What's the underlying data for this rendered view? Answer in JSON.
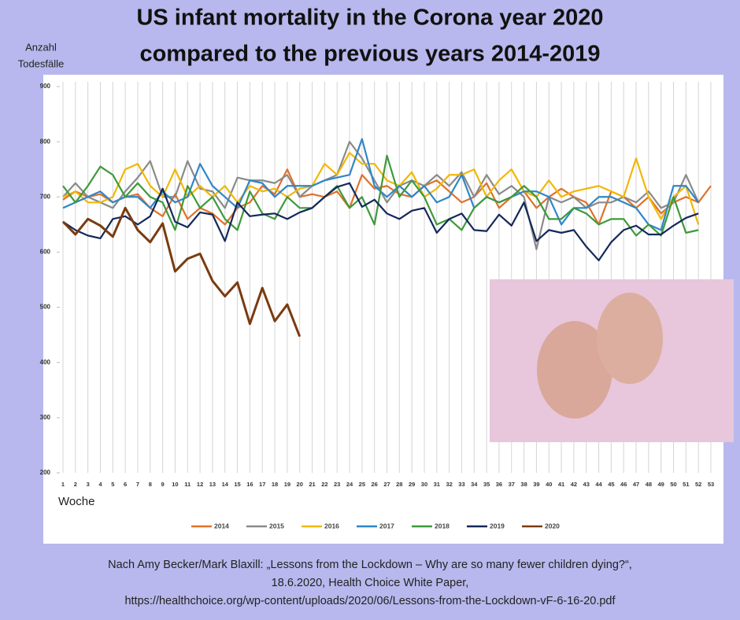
{
  "chart_data": {
    "type": "line",
    "title": [
      "US infant mortality in the Corona year 2020",
      "compared to the previous years 2014-2019"
    ],
    "y_label": [
      "Anzahl",
      "Todesfälle"
    ],
    "x_label": "Woche",
    "categories": [
      "1",
      "2",
      "3",
      "4",
      "5",
      "6",
      "7",
      "8",
      "9",
      "10",
      "11",
      "12",
      "13",
      "14",
      "15",
      "16",
      "17",
      "18",
      "19",
      "20",
      "21",
      "22",
      "23",
      "24",
      "25",
      "26",
      "27",
      "28",
      "29",
      "30",
      "31",
      "32",
      "33",
      "34",
      "35",
      "36",
      "37",
      "38",
      "39",
      "40",
      "41",
      "42",
      "43",
      "44",
      "45",
      "46",
      "47",
      "48",
      "49",
      "50",
      "51",
      "52",
      "53"
    ],
    "ylim": [
      200,
      900
    ],
    "yticks": [
      200,
      300,
      400,
      500,
      600,
      700,
      800,
      900
    ],
    "grid": "x",
    "series": [
      {
        "name": "2014",
        "color": "#e0712a",
        "values": [
          695,
          710,
          700,
          705,
          690,
          700,
          705,
          680,
          665,
          705,
          660,
          680,
          670,
          650,
          680,
          690,
          720,
          705,
          750,
          700,
          705,
          700,
          710,
          680,
          740,
          715,
          720,
          705,
          700,
          720,
          730,
          710,
          690,
          700,
          725,
          680,
          700,
          710,
          680,
          700,
          715,
          700,
          690,
          650,
          710,
          700,
          680,
          700,
          670,
          690,
          700,
          690,
          720
        ]
      },
      {
        "name": "2015",
        "color": "#8a8a8a",
        "values": [
          700,
          725,
          700,
          690,
          680,
          710,
          735,
          765,
          700,
          700,
          765,
          715,
          710,
          680,
          735,
          730,
          730,
          725,
          740,
          700,
          720,
          730,
          740,
          800,
          770,
          730,
          690,
          720,
          730,
          720,
          740,
          720,
          745,
          700,
          740,
          705,
          720,
          700,
          605,
          700,
          690,
          700,
          680,
          690,
          690,
          700,
          690,
          710,
          680,
          690,
          740,
          690,
          null
        ]
      },
      {
        "name": "2016",
        "color": "#f2b705",
        "values": [
          700,
          710,
          690,
          690,
          700,
          750,
          760,
          720,
          700,
          750,
          700,
          720,
          700,
          720,
          690,
          720,
          710,
          715,
          700,
          715,
          720,
          760,
          740,
          780,
          760,
          760,
          730,
          720,
          745,
          700,
          715,
          740,
          740,
          750,
          700,
          730,
          750,
          710,
          700,
          730,
          700,
          710,
          715,
          720,
          710,
          700,
          770,
          700,
          660,
          700,
          720,
          650,
          null
        ]
      },
      {
        "name": "2017",
        "color": "#2f86c8",
        "values": [
          680,
          690,
          700,
          710,
          690,
          700,
          700,
          680,
          710,
          690,
          700,
          760,
          720,
          700,
          680,
          730,
          725,
          700,
          720,
          720,
          720,
          730,
          735,
          740,
          805,
          720,
          700,
          720,
          700,
          720,
          690,
          700,
          740,
          680,
          700,
          690,
          700,
          710,
          710,
          700,
          650,
          680,
          680,
          700,
          700,
          690,
          680,
          650,
          640,
          720,
          720,
          690,
          null
        ]
      },
      {
        "name": "2018",
        "color": "#3e9a3a",
        "values": [
          720,
          690,
          720,
          755,
          740,
          700,
          725,
          700,
          690,
          640,
          720,
          680,
          700,
          660,
          640,
          710,
          670,
          660,
          700,
          680,
          680,
          700,
          720,
          680,
          700,
          650,
          775,
          700,
          730,
          700,
          650,
          660,
          640,
          680,
          700,
          690,
          700,
          720,
          700,
          660,
          660,
          680,
          670,
          650,
          660,
          660,
          630,
          650,
          630,
          700,
          635,
          640,
          null
        ]
      },
      {
        "name": "2019",
        "color": "#14285a",
        "values": [
          655,
          640,
          630,
          625,
          660,
          665,
          650,
          665,
          715,
          655,
          645,
          672,
          668,
          620,
          690,
          665,
          668,
          670,
          660,
          672,
          680,
          700,
          718,
          725,
          682,
          695,
          670,
          660,
          675,
          680,
          635,
          660,
          670,
          640,
          638,
          668,
          648,
          690,
          620,
          640,
          635,
          640,
          610,
          585,
          618,
          640,
          648,
          632,
          632,
          648,
          662,
          670,
          null
        ]
      },
      {
        "name": "2020",
        "color": "#7a3b10",
        "values": [
          655,
          632,
          660,
          648,
          628,
          680,
          640,
          618,
          652,
          565,
          588,
          597,
          548,
          520,
          545,
          470,
          535,
          475,
          505,
          447,
          null,
          null,
          null,
          null,
          null,
          null,
          null,
          null,
          null,
          null,
          null,
          null,
          null,
          null,
          null,
          null,
          null,
          null,
          null,
          null,
          null,
          null,
          null,
          null,
          null,
          null,
          null,
          null,
          null,
          null,
          null,
          null,
          null
        ]
      }
    ],
    "source": [
      "Nach Amy Becker/Mark Blaxill: „Lessons from the Lockdown – Why are so many fewer children dying?“,",
      "18.6.2020, Health Choice White Paper,",
      "https://healthchoice.org/wp-content/uploads/2020/06/Lessons-from-the-Lockdown-vF-6-16-20.pdf"
    ]
  }
}
